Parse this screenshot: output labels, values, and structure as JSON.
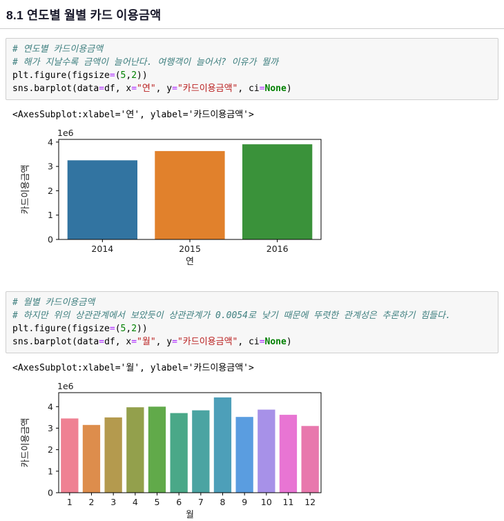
{
  "page": {
    "title": "8.1  연도별 월별 카드 이용금액"
  },
  "cells": [
    {
      "code_lines": [
        [
          [
            "c",
            "# 연도별 카드이용금액"
          ]
        ],
        [
          [
            "c",
            "# 해가 지날수록 금액이 늘어난다. 여행객이 늘어서? 이유가 뭘까"
          ]
        ],
        [
          [
            "t",
            "plt.figure(figsize"
          ],
          [
            "o",
            "="
          ],
          [
            "t",
            "("
          ],
          [
            "n",
            "5"
          ],
          [
            "t",
            ","
          ],
          [
            "n",
            "2"
          ],
          [
            "t",
            "))"
          ]
        ],
        [
          [
            "t",
            "sns.barplot(data"
          ],
          [
            "o",
            "="
          ],
          [
            "t",
            "df, x"
          ],
          [
            "o",
            "="
          ],
          [
            "s",
            "\"연\""
          ],
          [
            "t",
            ", y"
          ],
          [
            "o",
            "="
          ],
          [
            "s",
            "\"카드이용금액\""
          ],
          [
            "t",
            ", ci"
          ],
          [
            "o",
            "="
          ],
          [
            "k",
            "None"
          ],
          [
            "t",
            ")"
          ]
        ]
      ],
      "output_text": "<AxesSubplot:xlabel='연', ylabel='카드이용금액'>"
    },
    {
      "code_lines": [
        [
          [
            "c",
            "# 월별 카드이용금액"
          ]
        ],
        [
          [
            "c",
            "# 하지만 위의 상관관계에서 보았듯이 상관관계가 0.0054로 낮기 때문에 뚜렷한 관계성은 추론하기 힘들다."
          ]
        ],
        [
          [
            "t",
            "plt.figure(figsize"
          ],
          [
            "o",
            "="
          ],
          [
            "t",
            "("
          ],
          [
            "n",
            "5"
          ],
          [
            "t",
            ","
          ],
          [
            "n",
            "2"
          ],
          [
            "t",
            "))"
          ]
        ],
        [
          [
            "t",
            "sns.barplot(data"
          ],
          [
            "o",
            "="
          ],
          [
            "t",
            "df, x"
          ],
          [
            "o",
            "="
          ],
          [
            "s",
            "\"월\""
          ],
          [
            "t",
            ", y"
          ],
          [
            "o",
            "="
          ],
          [
            "s",
            "\"카드이용금액\""
          ],
          [
            "t",
            ", ci"
          ],
          [
            "o",
            "="
          ],
          [
            "k",
            "None"
          ],
          [
            "t",
            ")"
          ]
        ]
      ],
      "output_text": "<AxesSubplot:xlabel='월', ylabel='카드이용금액'>"
    }
  ],
  "chart_data": [
    {
      "type": "bar",
      "title": "",
      "categories": [
        "2014",
        "2015",
        "2016"
      ],
      "values": [
        3.25,
        3.63,
        3.91
      ],
      "unit_multiplier": "1e6",
      "xlabel": "연",
      "ylabel": "카드이용금액",
      "yticks": [
        0,
        1,
        2,
        3,
        4
      ],
      "ylim": [
        0,
        4.11
      ],
      "grid": false,
      "bar_colors": [
        "#3274a1",
        "#e1812c",
        "#3a923a"
      ]
    },
    {
      "type": "bar",
      "title": "",
      "categories": [
        "1",
        "2",
        "3",
        "4",
        "5",
        "6",
        "7",
        "8",
        "9",
        "10",
        "11",
        "12"
      ],
      "values": [
        3.45,
        3.15,
        3.5,
        3.97,
        4.0,
        3.7,
        3.83,
        4.43,
        3.52,
        3.86,
        3.62,
        3.1
      ],
      "unit_multiplier": "1e6",
      "xlabel": "월",
      "ylabel": "카드이용금액",
      "yticks": [
        0,
        1,
        2,
        3,
        4
      ],
      "ylim": [
        0,
        4.65
      ],
      "grid": false,
      "bar_colors": [
        "#ef8193",
        "#dd8d4c",
        "#b49a4e",
        "#93a04c",
        "#61aa4a",
        "#4aa888",
        "#4ba4a2",
        "#4d9fb9",
        "#5a9de0",
        "#a791e8",
        "#e875d3",
        "#e878ad"
      ]
    }
  ]
}
